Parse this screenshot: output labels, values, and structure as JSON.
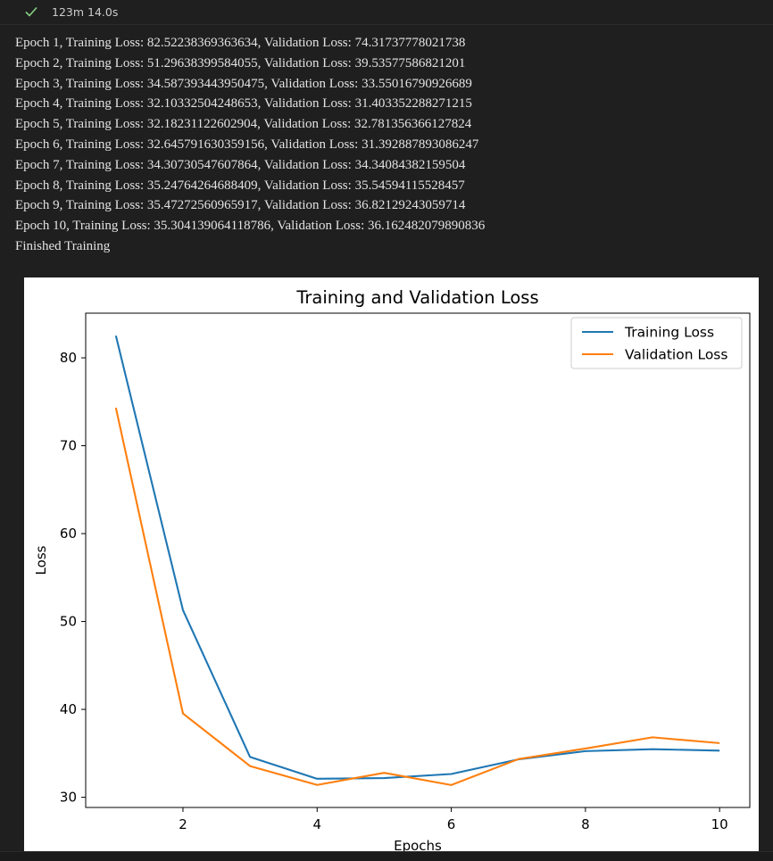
{
  "cell_status": {
    "icon": "check-icon",
    "duration": "123m 14.0s",
    "colors": {
      "check": "#89d185"
    }
  },
  "output": {
    "lines": [
      "Epoch 1, Training Loss: 82.52238369363634, Validation Loss: 74.31737778021738",
      "Epoch 2, Training Loss: 51.29638399584055, Validation Loss: 39.53577586821201",
      "Epoch 3, Training Loss: 34.587393443950475, Validation Loss: 33.55016790926689",
      "Epoch 4, Training Loss: 32.10332504248653, Validation Loss: 31.403352288271215",
      "Epoch 5, Training Loss: 32.18231122602904, Validation Loss: 32.781356366127824",
      "Epoch 6, Training Loss: 32.645791630359156, Validation Loss: 31.392887893086247",
      "Epoch 7, Training Loss: 34.30730547607864, Validation Loss: 34.34084382159504",
      "Epoch 8, Training Loss: 35.24764264688409, Validation Loss: 35.54594115528457",
      "Epoch 9, Training Loss: 35.47272560965917, Validation Loss: 36.82129243059714",
      "Epoch 10, Training Loss: 35.304139064118786, Validation Loss: 36.162482079890836",
      "Finished Training"
    ]
  },
  "chart_data": {
    "type": "line",
    "title": "Training and Validation Loss",
    "xlabel": "Epochs",
    "ylabel": "Loss",
    "x": [
      1,
      2,
      3,
      4,
      5,
      6,
      7,
      8,
      9,
      10
    ],
    "series": [
      {
        "name": "Training Loss",
        "color": "#1f77b4",
        "values": [
          82.52238369363634,
          51.29638399584055,
          34.587393443950475,
          32.10332504248653,
          32.18231122602904,
          32.645791630359156,
          34.30730547607864,
          35.24764264688409,
          35.47272560965917,
          35.304139064118786
        ]
      },
      {
        "name": "Validation Loss",
        "color": "#ff7f0e",
        "values": [
          74.31737778021738,
          39.53577586821201,
          33.55016790926689,
          31.403352288271215,
          32.781356366127824,
          31.392887893086247,
          34.34084382159504,
          35.54594115528457,
          36.82129243059714,
          36.162482079890836
        ]
      }
    ],
    "xticks": [
      2,
      4,
      6,
      8,
      10
    ],
    "yticks": [
      30,
      40,
      50,
      60,
      70,
      80
    ],
    "xlim": [
      0.55,
      10.45
    ],
    "ylim": [
      28.84,
      85.08
    ],
    "grid": false,
    "legend": "top-right"
  }
}
